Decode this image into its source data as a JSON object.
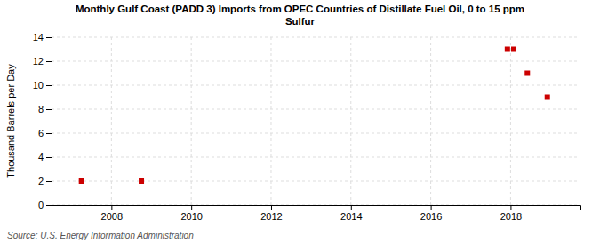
{
  "chart_data": {
    "type": "scatter",
    "title": "Monthly Gulf Coast (PADD 3) Imports from OPEC Countries of Distillate Fuel Oil, 0 to 15 ppm\nSulfur",
    "ylabel": "Thousand Barrels per Day",
    "annotations": [
      "Source: U.S. Energy Information Administration"
    ],
    "x": [
      2007.25,
      2008.75,
      2017.92,
      2018.08,
      2018.42,
      2018.92
    ],
    "values": [
      2,
      2,
      13,
      13,
      11,
      9
    ],
    "color": "#cc0000",
    "marker": "square",
    "xlim": [
      2006.5,
      2019.75
    ],
    "ylim": [
      0,
      14
    ],
    "xticks": [
      2008,
      2010,
      2012,
      2014,
      2016,
      2018
    ],
    "yticks": [
      0,
      2,
      4,
      6,
      8,
      10,
      12,
      14
    ],
    "grid": true
  }
}
